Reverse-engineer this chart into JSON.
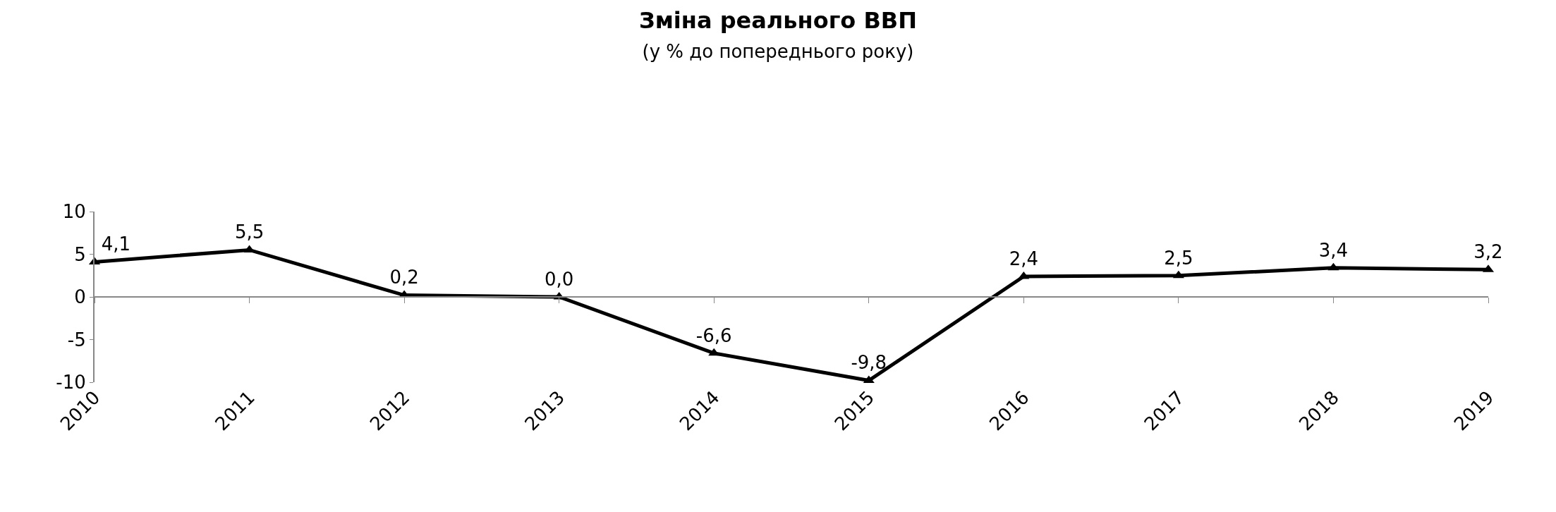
{
  "chart_data": {
    "type": "line",
    "title": "Зміна реального ВВП",
    "subtitle": "(у % до попереднього року)",
    "categories": [
      "2010",
      "2011",
      "2012",
      "2013",
      "2014",
      "2015",
      "2016",
      "2017",
      "2018",
      "2019"
    ],
    "series": [
      {
        "color": "#000000",
        "values": [
          4.1,
          5.5,
          0.2,
          0.0,
          -6.6,
          -9.8,
          2.4,
          2.5,
          3.4,
          3.2
        ],
        "value_labels": [
          "4,1",
          "5,5",
          "0,2",
          "0,0",
          "-6,6",
          "-9,8",
          "2,4",
          "2,5",
          "3,4",
          "3,2"
        ]
      }
    ],
    "ylim": [
      -10,
      10
    ],
    "yticks": [
      -10,
      -5,
      0,
      5,
      10
    ],
    "marker": "triangle",
    "line_style": "solid"
  }
}
